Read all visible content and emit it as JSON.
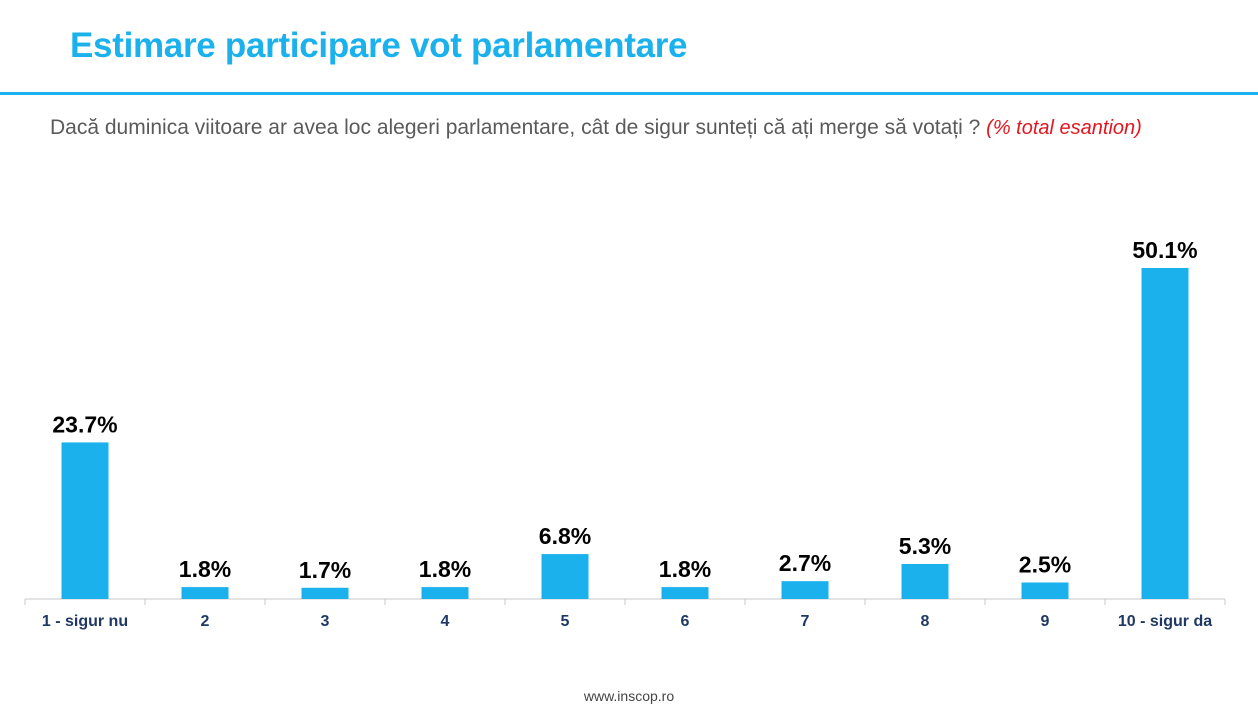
{
  "header": {
    "title": "Estimare participare vot parlamentare"
  },
  "question": {
    "text": "Dacă duminica viitoare ar avea loc alegeri parlamentare, cât de sigur sunteți că ați merge să votați ?",
    "note": "(% total esantion)"
  },
  "footer": {
    "url": "www.inscop.ro"
  },
  "colors": {
    "accent": "#1bb1ec",
    "bar": "#1bb1ec",
    "note": "#e3161f",
    "category_label": "#1f3864"
  },
  "chart_data": {
    "type": "bar",
    "title": "",
    "xlabel": "",
    "ylabel": "",
    "categories": [
      "1 - sigur nu",
      "2",
      "3",
      "4",
      "5",
      "6",
      "7",
      "8",
      "9",
      "10 - sigur da"
    ],
    "values": [
      23.7,
      1.8,
      1.7,
      1.8,
      6.8,
      1.8,
      2.7,
      5.3,
      2.5,
      50.1
    ],
    "value_labels": [
      "23.7%",
      "1.8%",
      "1.7%",
      "1.8%",
      "6.8%",
      "1.8%",
      "2.7%",
      "5.3%",
      "2.5%",
      "50.1%"
    ],
    "ylim": [
      0,
      50.1
    ],
    "grid": false,
    "legend": "none"
  }
}
